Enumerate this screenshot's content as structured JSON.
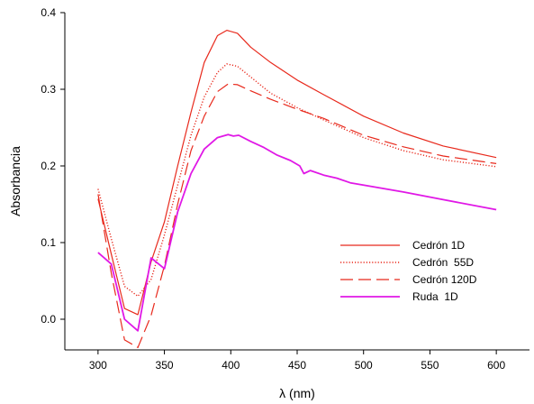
{
  "chart_data": {
    "type": "line",
    "xlabel": "λ (nm)",
    "ylabel": "Absorbancia",
    "xlim": [
      275,
      625
    ],
    "ylim": [
      -0.04,
      0.4
    ],
    "xticks": [
      300,
      350,
      400,
      450,
      500,
      550,
      600
    ],
    "xtick_labels": [
      "300",
      "350",
      "400",
      "450",
      "500",
      "550",
      "600"
    ],
    "yticks": [
      0.0,
      0.1,
      0.2,
      0.3,
      0.4
    ],
    "ytick_labels": [
      "0.0",
      "0.1",
      "0.2",
      "0.3",
      "0.4"
    ],
    "grid": false,
    "legend_position": "lower-right",
    "series": [
      {
        "name": "Cedrón 1D",
        "color": "#e8291c",
        "dash": "solid",
        "points": [
          [
            300,
            0.157
          ],
          [
            310,
            0.085
          ],
          [
            320,
            0.014
          ],
          [
            330,
            0.006
          ],
          [
            340,
            0.075
          ],
          [
            350,
            0.127
          ],
          [
            360,
            0.2
          ],
          [
            370,
            0.27
          ],
          [
            380,
            0.335
          ],
          [
            390,
            0.37
          ],
          [
            397,
            0.377
          ],
          [
            405,
            0.373
          ],
          [
            415,
            0.355
          ],
          [
            430,
            0.335
          ],
          [
            450,
            0.312
          ],
          [
            470,
            0.293
          ],
          [
            500,
            0.265
          ],
          [
            530,
            0.243
          ],
          [
            560,
            0.226
          ],
          [
            600,
            0.211
          ]
        ]
      },
      {
        "name": "Cedrón  55D",
        "color": "#e8291c",
        "dash": "dotted",
        "points": [
          [
            300,
            0.17
          ],
          [
            310,
            0.105
          ],
          [
            320,
            0.043
          ],
          [
            330,
            0.03
          ],
          [
            340,
            0.052
          ],
          [
            350,
            0.11
          ],
          [
            360,
            0.175
          ],
          [
            370,
            0.24
          ],
          [
            380,
            0.29
          ],
          [
            390,
            0.322
          ],
          [
            397,
            0.333
          ],
          [
            405,
            0.33
          ],
          [
            415,
            0.316
          ],
          [
            430,
            0.295
          ],
          [
            450,
            0.276
          ],
          [
            470,
            0.26
          ],
          [
            500,
            0.237
          ],
          [
            530,
            0.22
          ],
          [
            560,
            0.208
          ],
          [
            600,
            0.199
          ]
        ]
      },
      {
        "name": "Cedrón 120D",
        "color": "#e8291c",
        "dash": "dashed",
        "points": [
          [
            300,
            0.163
          ],
          [
            310,
            0.06
          ],
          [
            320,
            -0.027
          ],
          [
            330,
            -0.037
          ],
          [
            340,
            0.005
          ],
          [
            350,
            0.07
          ],
          [
            360,
            0.15
          ],
          [
            370,
            0.22
          ],
          [
            380,
            0.265
          ],
          [
            390,
            0.297
          ],
          [
            398,
            0.307
          ],
          [
            405,
            0.306
          ],
          [
            415,
            0.298
          ],
          [
            430,
            0.287
          ],
          [
            450,
            0.274
          ],
          [
            470,
            0.262
          ],
          [
            500,
            0.24
          ],
          [
            530,
            0.225
          ],
          [
            560,
            0.213
          ],
          [
            600,
            0.203
          ]
        ]
      },
      {
        "name": "Ruda  1D",
        "color": "#e018e6",
        "dash": "solid",
        "points": [
          [
            300,
            0.087
          ],
          [
            310,
            0.072
          ],
          [
            320,
            0.0
          ],
          [
            330,
            -0.015
          ],
          [
            340,
            0.08
          ],
          [
            350,
            0.066
          ],
          [
            360,
            0.14
          ],
          [
            370,
            0.19
          ],
          [
            380,
            0.222
          ],
          [
            390,
            0.237
          ],
          [
            398,
            0.241
          ],
          [
            402,
            0.239
          ],
          [
            406,
            0.24
          ],
          [
            415,
            0.232
          ],
          [
            425,
            0.224
          ],
          [
            435,
            0.214
          ],
          [
            445,
            0.207
          ],
          [
            452,
            0.2
          ],
          [
            455,
            0.19
          ],
          [
            460,
            0.194
          ],
          [
            470,
            0.188
          ],
          [
            480,
            0.184
          ],
          [
            490,
            0.178
          ],
          [
            500,
            0.175
          ],
          [
            530,
            0.166
          ],
          [
            560,
            0.156
          ],
          [
            600,
            0.143
          ]
        ]
      }
    ]
  }
}
